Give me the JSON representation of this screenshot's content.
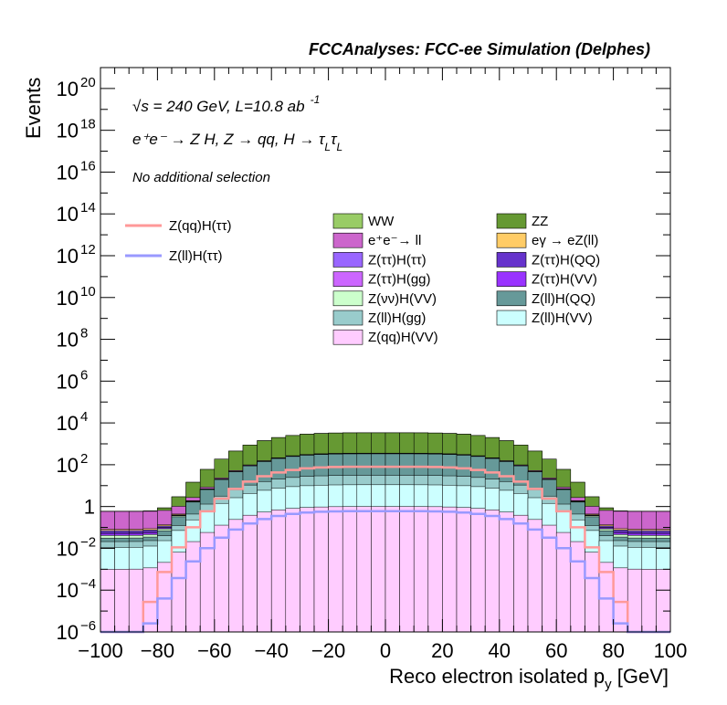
{
  "chart_data": {
    "type": "bar",
    "stacked": true,
    "title": "FCCAnalyses: FCC-ee Simulation (Delphes)",
    "xlabel": "Reco electron isolated p",
    "xlabel_sub": "y",
    "xlabel_unit": " [GeV]",
    "ylabel": "Events",
    "xlim": [
      -100,
      100
    ],
    "ylim_exp": [
      -6,
      21
    ],
    "log_y": true,
    "x_ticks": [
      "−100",
      "−80",
      "−60",
      "−40",
      "−20",
      "0",
      "20",
      "40",
      "60",
      "80",
      "100"
    ],
    "y_ticks": [
      {
        "exp": -6,
        "label": "10",
        "sup": "−6"
      },
      {
        "exp": -4,
        "label": "10",
        "sup": "−4"
      },
      {
        "exp": -2,
        "label": "10",
        "sup": "−2"
      },
      {
        "exp": 0,
        "label": "1",
        "sup": ""
      },
      {
        "exp": 2,
        "label": "10",
        "sup": "2"
      },
      {
        "exp": 4,
        "label": "10",
        "sup": "4"
      },
      {
        "exp": 6,
        "label": "10",
        "sup": "6"
      },
      {
        "exp": 8,
        "label": "10",
        "sup": "8"
      },
      {
        "exp": 10,
        "label": "10",
        "sup": "10"
      },
      {
        "exp": 12,
        "label": "10",
        "sup": "12"
      },
      {
        "exp": 14,
        "label": "10",
        "sup": "14"
      },
      {
        "exp": 16,
        "label": "10",
        "sup": "16"
      },
      {
        "exp": 18,
        "label": "10",
        "sup": "18"
      },
      {
        "exp": 20,
        "label": "10",
        "sup": "20"
      }
    ],
    "annotations": {
      "energy": "√s = 240 GeV, L=10.8 ab",
      "energy_sup": "-1",
      "process": "e⁺e⁻ → Z H, Z → qq, H → τ",
      "selection": "No additional selection"
    },
    "bins": {
      "min": -100,
      "max": 100,
      "width": 5
    },
    "stack_order": [
      "Z(qq)H(VV)",
      "Z(ll)H(VV)",
      "Z(ll)H(gg)",
      "Z(ll)H(QQ)",
      "Z(νν)H(VV)",
      "Z(ττ)H(VV)",
      "Z(ττ)H(gg)",
      "Z(ττ)H(QQ)",
      "Z(ττ)H(ττ)",
      "eγ → eZ(ll)",
      "e⁺e⁻→ ll",
      "ZZ",
      "WW"
    ],
    "series": [
      {
        "name": "WW",
        "color": "#99cc66",
        "peak": 40,
        "width": 42,
        "floor": 0.01
      },
      {
        "name": "ZZ",
        "color": "#669933",
        "peak": 3000,
        "width": 44,
        "floor": 0.01
      },
      {
        "name": "e⁺e⁻→ ll",
        "color": "#cc66cc",
        "peak": 15,
        "width": 48,
        "floor": 0.5
      },
      {
        "name": "eγ → eZ(ll)",
        "color": "#ffcc66",
        "peak": 2,
        "width": 50,
        "floor": 0.01
      },
      {
        "name": "Z(ττ)H(ττ)",
        "color": "#9966ff",
        "peak": 0.9,
        "width": 50,
        "floor": 0.01
      },
      {
        "name": "Z(ττ)H(gg)",
        "color": "#cc66ff",
        "peak": 0.03,
        "width": 46,
        "floor": 0
      },
      {
        "name": "Z(ττ)H(QQ)",
        "color": "#6633cc",
        "peak": 3,
        "width": 44,
        "floor": 0.01
      },
      {
        "name": "Z(ττ)H(VV)",
        "color": "#9933ff",
        "peak": 0.7,
        "width": 46,
        "floor": 0.01
      },
      {
        "name": "Z(νν)H(VV)",
        "color": "#ccffcc",
        "peak": 5,
        "width": 48,
        "floor": 0.01
      },
      {
        "name": "Z(ll)H(QQ)",
        "color": "#669999",
        "peak": 300,
        "width": 44,
        "floor": 0.01
      },
      {
        "name": "Z(ll)H(gg)",
        "color": "#99cccc",
        "peak": 20,
        "width": 46,
        "floor": 0.01
      },
      {
        "name": "Z(ll)H(VV)",
        "color": "#ccffff",
        "peak": 10,
        "width": 48,
        "floor": 0.01
      },
      {
        "name": "Z(qq)H(VV)",
        "color": "#ffccff",
        "peak": 1,
        "width": 48,
        "floor": 0.001
      }
    ],
    "signal": [
      {
        "name": "Z(qq)H(ττ)",
        "color": "#ff9999",
        "peak": 80,
        "width": 42
      },
      {
        "name": "Z(ll)H(ττ)",
        "color": "#9999ff",
        "peak": 0.6,
        "width": 44
      }
    ],
    "legend": {
      "placement": "top",
      "signal_entries": [
        "Z(qq)H(ττ)",
        "Z(ll)H(ττ)"
      ],
      "left_column": [
        "WW",
        "e⁺e⁻→ ll",
        "Z(ττ)H(ττ)",
        "Z(ττ)H(gg)",
        "Z(νν)H(VV)",
        "Z(ll)H(gg)",
        "Z(qq)H(VV)"
      ],
      "right_column": [
        "ZZ",
        "eγ → eZ(ll)",
        "Z(ττ)H(QQ)",
        "Z(ττ)H(VV)",
        "Z(ll)H(QQ)",
        "Z(ll)H(VV)"
      ]
    }
  }
}
